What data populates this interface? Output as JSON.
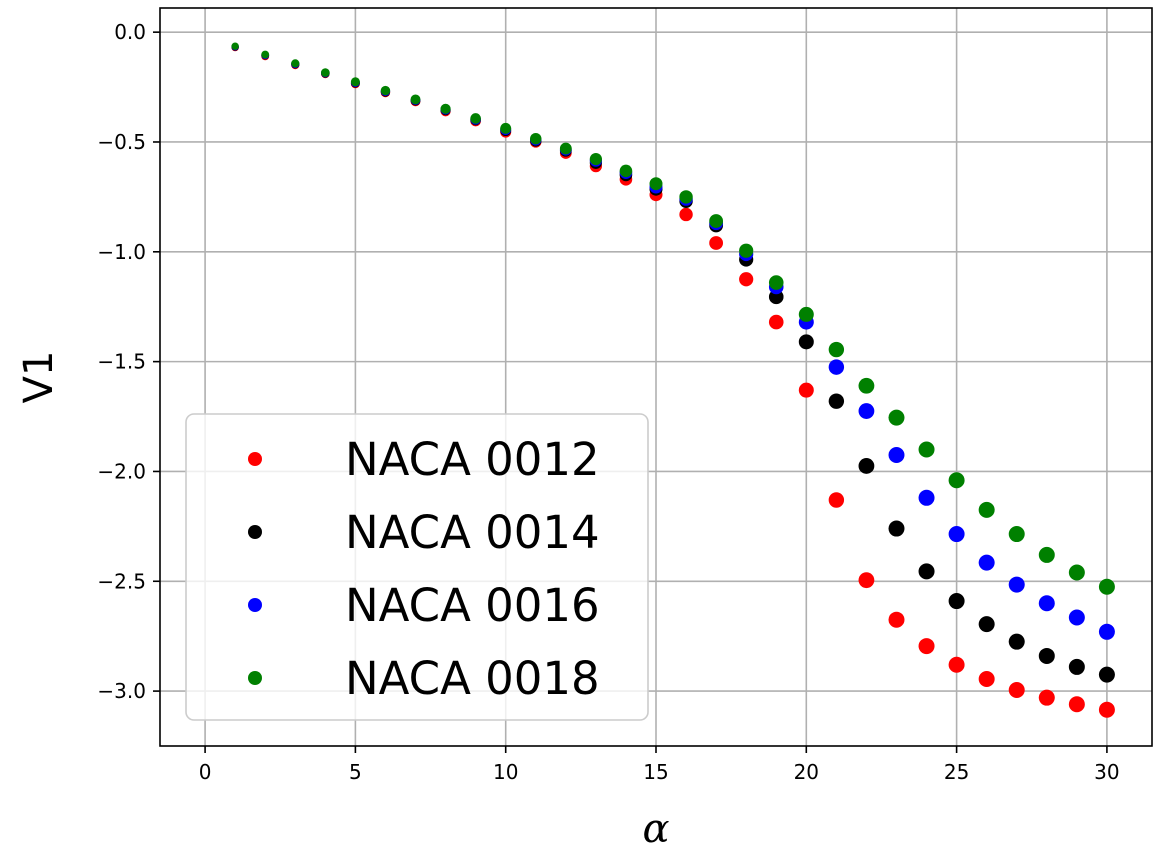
{
  "chart_data": {
    "type": "scatter",
    "title": "",
    "xlabel": "α",
    "ylabel": "V1",
    "xlim": [
      -1.5,
      31.5
    ],
    "ylim": [
      -3.25,
      0.11
    ],
    "xticks": [
      0,
      5,
      10,
      15,
      20,
      25,
      30
    ],
    "xtick_labels": [
      "0",
      "5",
      "10",
      "15",
      "20",
      "25",
      "30"
    ],
    "yticks": [
      0.0,
      -0.5,
      -1.0,
      -1.5,
      -2.0,
      -2.5,
      -3.0
    ],
    "ytick_labels": [
      "0.0",
      "−0.5",
      "−1.0",
      "−1.5",
      "−2.0",
      "−2.5",
      "−3.0"
    ],
    "grid": true,
    "legend_position": "lower-left",
    "x": [
      1,
      2,
      3,
      4,
      5,
      6,
      7,
      8,
      9,
      10,
      11,
      12,
      13,
      14,
      15,
      16,
      17,
      18,
      19,
      20,
      21,
      22,
      23,
      24,
      25,
      26,
      27,
      28,
      29,
      30
    ],
    "series": [
      {
        "name": "NACA 0012",
        "color": "#ff0000",
        "values": [
          -0.07,
          -0.11,
          -0.15,
          -0.19,
          -0.235,
          -0.275,
          -0.315,
          -0.36,
          -0.405,
          -0.455,
          -0.5,
          -0.55,
          -0.61,
          -0.67,
          -0.74,
          -0.83,
          -0.96,
          -1.125,
          -1.32,
          -1.63,
          -2.13,
          -2.495,
          -2.675,
          -2.795,
          -2.88,
          -2.945,
          -2.995,
          -3.03,
          -3.06,
          -3.085
        ]
      },
      {
        "name": "NACA 0014",
        "color": "#000000",
        "values": [
          -0.068,
          -0.107,
          -0.147,
          -0.188,
          -0.232,
          -0.272,
          -0.312,
          -0.355,
          -0.4,
          -0.448,
          -0.495,
          -0.54,
          -0.595,
          -0.65,
          -0.715,
          -0.77,
          -0.88,
          -1.035,
          -1.205,
          -1.41,
          -1.68,
          -1.975,
          -2.26,
          -2.455,
          -2.59,
          -2.695,
          -2.775,
          -2.84,
          -2.89,
          -2.925
        ]
      },
      {
        "name": "NACA 0016",
        "color": "#0000ff",
        "values": [
          -0.066,
          -0.105,
          -0.145,
          -0.186,
          -0.229,
          -0.269,
          -0.309,
          -0.352,
          -0.397,
          -0.443,
          -0.49,
          -0.535,
          -0.585,
          -0.64,
          -0.705,
          -0.76,
          -0.87,
          -1.01,
          -1.16,
          -1.32,
          -1.525,
          -1.725,
          -1.925,
          -2.12,
          -2.285,
          -2.415,
          -2.515,
          -2.6,
          -2.665,
          -2.73
        ]
      },
      {
        "name": "NACA 0018",
        "color": "#008000",
        "values": [
          -0.064,
          -0.102,
          -0.142,
          -0.184,
          -0.226,
          -0.266,
          -0.306,
          -0.349,
          -0.393,
          -0.438,
          -0.485,
          -0.53,
          -0.578,
          -0.632,
          -0.69,
          -0.75,
          -0.86,
          -0.995,
          -1.14,
          -1.285,
          -1.445,
          -1.61,
          -1.755,
          -1.9,
          -2.04,
          -2.175,
          -2.285,
          -2.38,
          -2.46,
          -2.525
        ]
      }
    ]
  }
}
